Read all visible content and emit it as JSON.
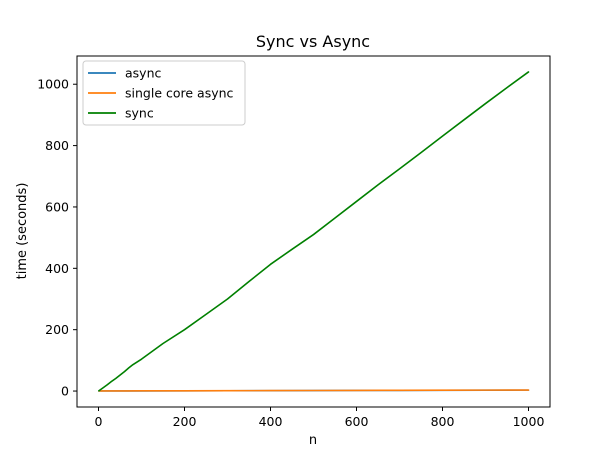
{
  "chart_data": {
    "type": "line",
    "title": "Sync vs Async",
    "xlabel": "n",
    "ylabel": "time (seconds)",
    "xlim": [
      -50,
      1050
    ],
    "ylim": [
      -52,
      1092
    ],
    "xticks": [
      0,
      200,
      400,
      600,
      800,
      1000
    ],
    "yticks": [
      0,
      200,
      400,
      600,
      800,
      1000
    ],
    "grid": false,
    "legend_position": "top-left",
    "series": [
      {
        "name": "async",
        "color": "#1f77b4",
        "x": [
          1,
          100,
          200,
          300,
          400,
          500,
          600,
          700,
          800,
          900,
          1000
        ],
        "y": [
          0.2,
          0.5,
          0.8,
          1.0,
          1.3,
          1.6,
          1.9,
          2.1,
          2.4,
          2.7,
          3.0
        ]
      },
      {
        "name": "single core async",
        "color": "#ff7f0e",
        "x": [
          1,
          100,
          200,
          300,
          400,
          500,
          600,
          700,
          800,
          900,
          1000
        ],
        "y": [
          0.3,
          0.6,
          0.9,
          1.2,
          1.5,
          1.8,
          2.1,
          2.4,
          2.7,
          3.0,
          3.3
        ]
      },
      {
        "name": "sync",
        "color": "#008000",
        "x": [
          1,
          10,
          20,
          30,
          40,
          50,
          60,
          70,
          80,
          100,
          150,
          200,
          250,
          300,
          350,
          400,
          450,
          500,
          550,
          600,
          650,
          700,
          750,
          800,
          850,
          900,
          950,
          1000
        ],
        "y": [
          1,
          10,
          20,
          31,
          41,
          52,
          63,
          75,
          86,
          104,
          155,
          200,
          250,
          300,
          357,
          413,
          462,
          510,
          564,
          618,
          672,
          724,
          777,
          831,
          884,
          937,
          989,
          1040
        ]
      }
    ]
  }
}
